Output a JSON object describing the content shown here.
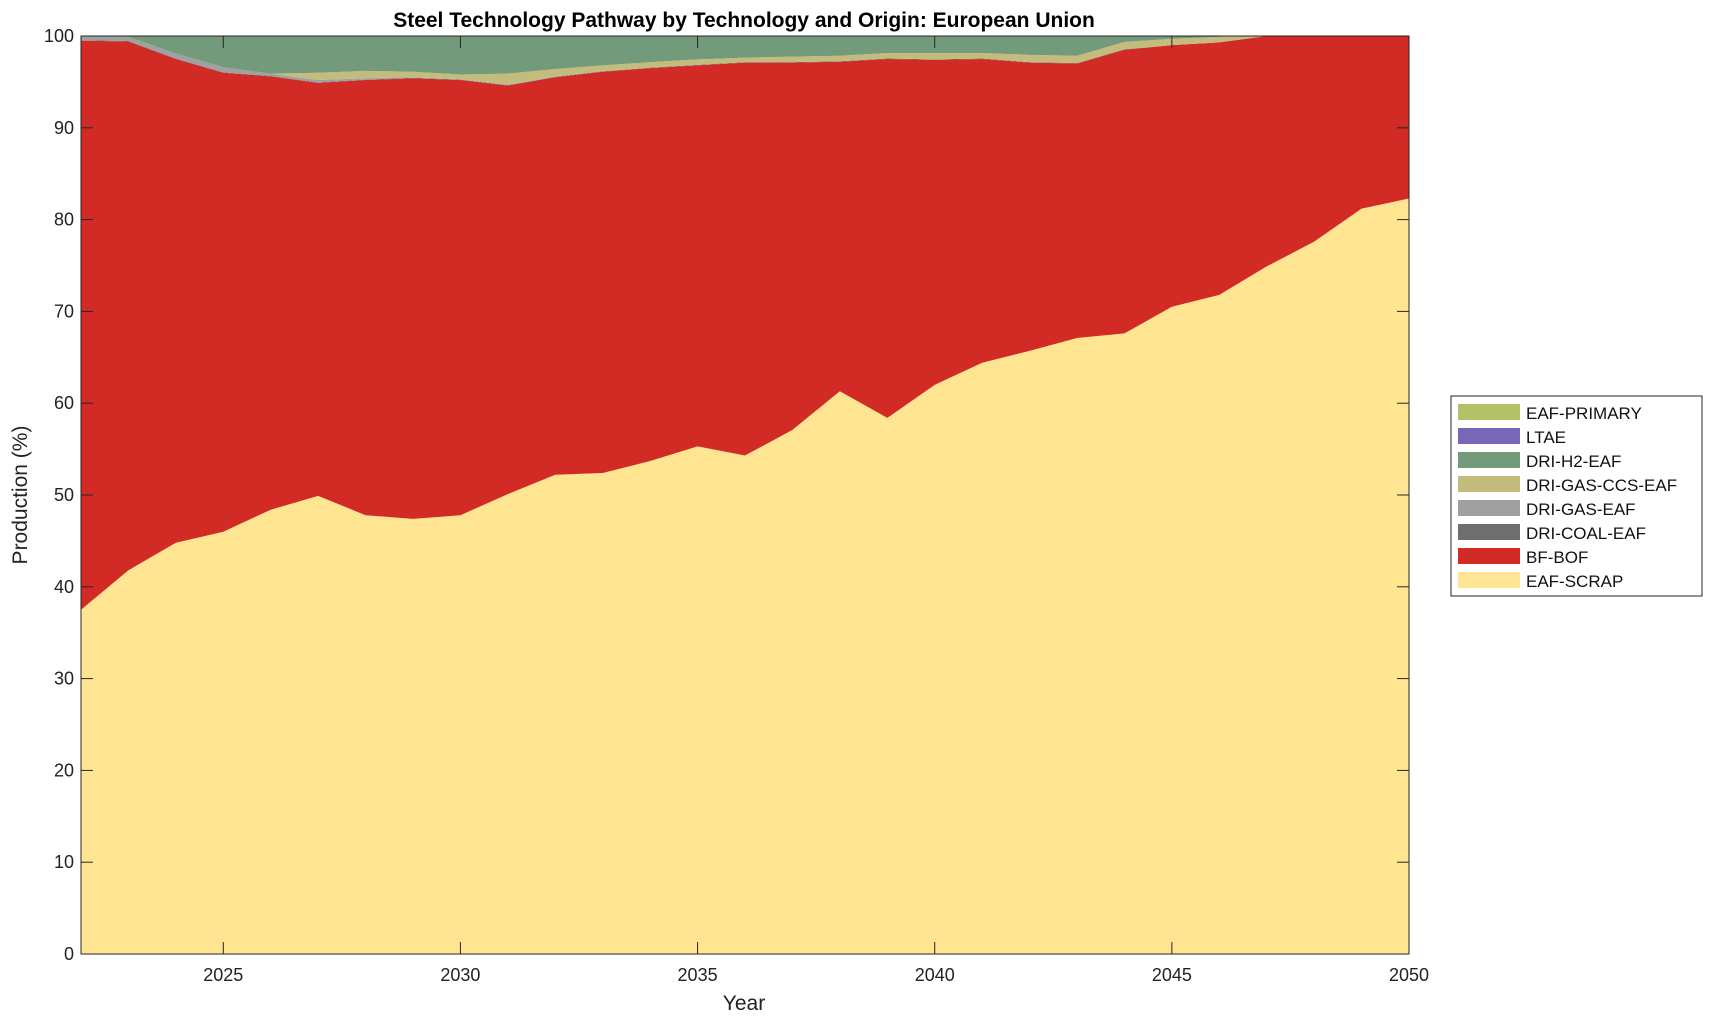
{
  "chart_data": {
    "type": "area",
    "stacked": true,
    "title": "Steel Technology Pathway by Technology and Origin: European Union",
    "xlabel": "Year",
    "ylabel": "Production (%)",
    "xlim": [
      2022,
      2050
    ],
    "ylim": [
      0,
      100
    ],
    "xticks": [
      2025,
      2030,
      2035,
      2040,
      2045,
      2050
    ],
    "yticks": [
      0,
      10,
      20,
      30,
      40,
      50,
      60,
      70,
      80,
      90,
      100
    ],
    "grid": false,
    "legend_position": "right",
    "x": [
      2022,
      2023,
      2024,
      2025,
      2026,
      2027,
      2028,
      2029,
      2030,
      2031,
      2032,
      2033,
      2034,
      2035,
      2036,
      2037,
      2038,
      2039,
      2040,
      2041,
      2042,
      2043,
      2044,
      2045,
      2046,
      2047,
      2048,
      2049,
      2050
    ],
    "series": [
      {
        "name": "EAF-SCRAP",
        "color": "#FFE591",
        "values": [
          37.5,
          41.8,
          44.8,
          46.0,
          48.4,
          49.9,
          47.8,
          47.4,
          47.8,
          50.1,
          52.2,
          52.4,
          53.7,
          55.3,
          54.3,
          57.1,
          61.3,
          58.4,
          62.0,
          64.4,
          65.7,
          67.1,
          67.6,
          70.5,
          71.8,
          74.9,
          77.6,
          81.2,
          82.3
        ]
      },
      {
        "name": "BF-BOF",
        "color": "#D22A25",
        "values": [
          62.0,
          57.6,
          52.7,
          50.0,
          47.2,
          45.0,
          47.4,
          48.0,
          47.4,
          44.5,
          43.3,
          43.7,
          42.8,
          41.5,
          42.8,
          40.0,
          35.9,
          39.1,
          35.4,
          33.1,
          31.4,
          29.9,
          30.9,
          28.5,
          27.5,
          25.1,
          22.4,
          18.8,
          17.7
        ]
      },
      {
        "name": "DRI-COAL-EAF",
        "color": "#6E6E6E",
        "values": [
          0.05,
          0.05,
          0.05,
          0.05,
          0.05,
          0.05,
          0.05,
          0.05,
          0.05,
          0.05,
          0.05,
          0.05,
          0.05,
          0.05,
          0.05,
          0.05,
          0.05,
          0.05,
          0.05,
          0.05,
          0.05,
          0.05,
          0.05,
          0,
          0,
          0,
          0,
          0,
          0
        ]
      },
      {
        "name": "DRI-GAS-EAF",
        "color": "#A0A0A0",
        "values": [
          0.35,
          0.45,
          0.55,
          0.55,
          0.25,
          0.25,
          0.15,
          0.05,
          0.05,
          0.05,
          0.05,
          0.05,
          0,
          0,
          0,
          0,
          0,
          0,
          0,
          0,
          0,
          0,
          0,
          0,
          0,
          0,
          0,
          0,
          0
        ]
      },
      {
        "name": "DRI-GAS-CCS-EAF",
        "color": "#C3BC7D",
        "values": [
          0,
          0,
          0,
          0,
          0,
          0.8,
          0.8,
          0.6,
          0.5,
          1.2,
          0.8,
          0.6,
          0.6,
          0.6,
          0.5,
          0.6,
          0.6,
          0.6,
          0.7,
          0.6,
          0.8,
          0.8,
          0.8,
          0.7,
          0.6,
          0,
          0,
          0,
          0
        ]
      },
      {
        "name": "DRI-H2-EAF",
        "color": "#739A7A",
        "values": [
          0.1,
          0.1,
          1.9,
          3.4,
          4.1,
          4.0,
          3.8,
          3.9,
          4.2,
          4.1,
          3.6,
          3.3,
          2.9,
          2.6,
          2.4,
          2.3,
          2.2,
          1.9,
          1.9,
          1.9,
          2.1,
          2.2,
          0.7,
          0.3,
          0.1,
          0,
          0,
          0,
          0
        ]
      },
      {
        "name": "LTAE",
        "color": "#7867B8",
        "values": [
          0,
          0,
          0,
          0,
          0,
          0,
          0,
          0,
          0,
          0,
          0,
          0,
          0,
          0,
          0,
          0,
          0,
          0,
          0,
          0,
          0,
          0,
          0,
          0,
          0,
          0,
          0,
          0,
          0
        ]
      },
      {
        "name": "EAF-PRIMARY",
        "color": "#B5C167",
        "values": [
          0,
          0,
          0,
          0,
          0,
          0,
          0,
          0,
          0,
          0,
          0,
          0,
          0,
          0,
          0,
          0,
          0,
          0,
          0,
          0,
          0,
          0,
          0,
          0,
          0,
          0,
          0,
          0,
          0
        ]
      }
    ],
    "legend_order": [
      "EAF-PRIMARY",
      "LTAE",
      "DRI-H2-EAF",
      "DRI-GAS-CCS-EAF",
      "DRI-GAS-EAF",
      "DRI-COAL-EAF",
      "BF-BOF",
      "EAF-SCRAP"
    ]
  }
}
